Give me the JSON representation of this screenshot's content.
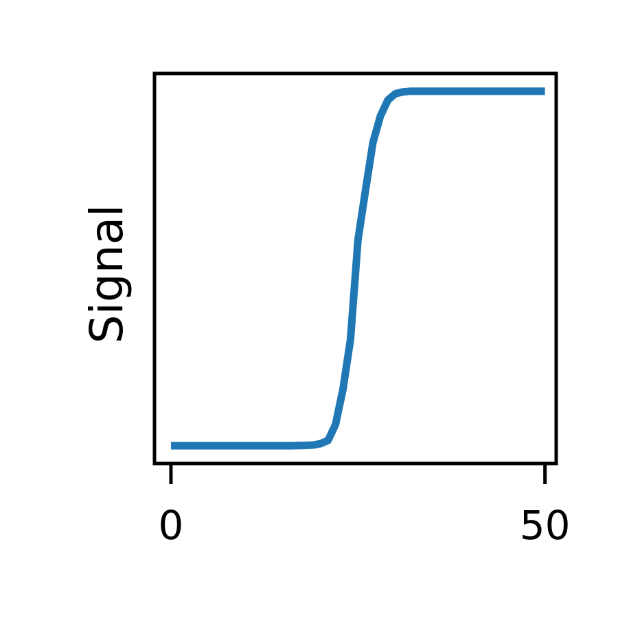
{
  "chart_data": {
    "type": "line",
    "title": "",
    "xlabel": "",
    "ylabel": "Signal",
    "xlim": [
      -2.2,
      51.5
    ],
    "ylim": [
      -0.05,
      1.05
    ],
    "xticks": [
      0,
      50
    ],
    "xtick_labels": [
      "0",
      "50"
    ],
    "yticks": [],
    "grid": false,
    "legend": "none",
    "series": [
      {
        "color": "#1f77b4",
        "x": [
          0,
          2,
          4,
          6,
          8,
          10,
          12,
          14,
          16,
          18,
          19,
          20,
          21,
          22,
          23,
          24,
          25,
          26,
          27,
          28,
          29,
          30,
          31,
          32,
          34,
          36,
          38,
          40,
          42,
          44,
          46,
          48,
          50
        ],
        "y": [
          0,
          0,
          0,
          0,
          0,
          0,
          0,
          0,
          0,
          0.001,
          0.002,
          0.006,
          0.015,
          0.06,
          0.16,
          0.3,
          0.58,
          0.72,
          0.855,
          0.93,
          0.975,
          0.993,
          0.998,
          1.0,
          1.0,
          1.0,
          1.0,
          1.0,
          1.0,
          1.0,
          1.0,
          1.0,
          1.0
        ]
      }
    ]
  }
}
